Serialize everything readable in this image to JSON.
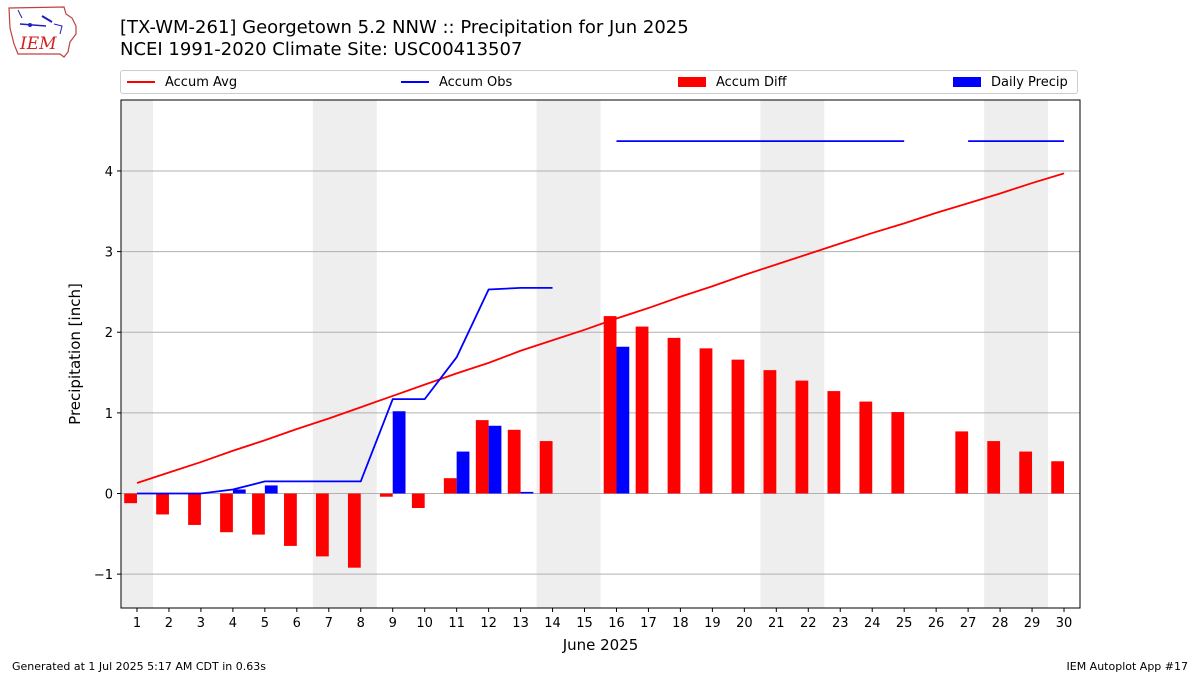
{
  "header": {
    "logo_text": "IEM",
    "title_line1": "[TX-WM-261] Georgetown 5.2 NNW :: Precipitation for Jun 2025",
    "title_line2": "NCEI 1991-2020 Climate Site: USC00413507"
  },
  "legend": {
    "accum_avg": "Accum Avg",
    "accum_obs": "Accum Obs",
    "accum_diff": "Accum Diff",
    "daily_precip": "Daily Precip"
  },
  "colors": {
    "accum_avg": "#ff0000",
    "accum_obs": "#0000ff",
    "accum_diff": "#ff0000",
    "daily_precip": "#0000ff",
    "weekend_shade": "#eeeeee",
    "grid": "#b0b0b0"
  },
  "footer": {
    "left": "Generated at 1 Jul 2025 5:17 AM CDT in 0.63s",
    "right": "IEM Autoplot App #17"
  },
  "chart_data": {
    "type": "bar",
    "xlabel": "June 2025",
    "ylabel": "Precipitation [inch]",
    "xlim": [
      0.5,
      30.5
    ],
    "ylim": [
      -1.42,
      4.88
    ],
    "yticks": [
      -1,
      0,
      1,
      2,
      3,
      4
    ],
    "days": [
      1,
      2,
      3,
      4,
      5,
      6,
      7,
      8,
      9,
      10,
      11,
      12,
      13,
      14,
      15,
      16,
      17,
      18,
      19,
      20,
      21,
      22,
      23,
      24,
      25,
      26,
      27,
      28,
      29,
      30
    ],
    "weekend_spans": [
      [
        0.5,
        1.5
      ],
      [
        6.5,
        8.5
      ],
      [
        13.5,
        15.5
      ],
      [
        20.5,
        22.5
      ],
      [
        27.5,
        29.5
      ]
    ],
    "grid": "horizontal",
    "legend_position": "top",
    "series": [
      {
        "name": "Accum Avg",
        "type": "line",
        "x": [
          1,
          2,
          3,
          4,
          5,
          6,
          7,
          8,
          9,
          10,
          11,
          12,
          13,
          14,
          15,
          16,
          17,
          18,
          19,
          20,
          21,
          22,
          23,
          24,
          25,
          26,
          27,
          28,
          29,
          30
        ],
        "values": [
          0.13,
          0.26,
          0.39,
          0.53,
          0.66,
          0.8,
          0.93,
          1.07,
          1.21,
          1.35,
          1.49,
          1.62,
          1.77,
          1.9,
          2.03,
          2.17,
          2.3,
          2.44,
          2.57,
          2.71,
          2.84,
          2.97,
          3.1,
          3.23,
          3.35,
          3.48,
          3.6,
          3.72,
          3.85,
          3.97
        ]
      },
      {
        "name": "Accum Obs",
        "type": "line",
        "segments": [
          {
            "x": [
              1,
              2,
              3,
              4,
              5,
              6,
              7,
              8,
              9,
              10,
              11,
              12,
              13,
              14
            ],
            "values": [
              0,
              0,
              0,
              0.05,
              0.15,
              0.15,
              0.15,
              0.15,
              1.17,
              1.17,
              1.69,
              2.53,
              2.55,
              2.55
            ]
          },
          {
            "x": [
              16,
              17,
              18,
              19,
              20,
              21,
              22,
              23,
              24,
              25
            ],
            "values": [
              4.37,
              4.37,
              4.37,
              4.37,
              4.37,
              4.37,
              4.37,
              4.37,
              4.37,
              4.37
            ]
          },
          {
            "x": [
              27,
              28,
              29,
              30
            ],
            "values": [
              4.37,
              4.37,
              4.37,
              4.37
            ]
          }
        ]
      },
      {
        "name": "Accum Diff",
        "type": "bar",
        "x": [
          1,
          2,
          3,
          4,
          5,
          6,
          7,
          8,
          9,
          10,
          11,
          12,
          13,
          14,
          16,
          17,
          18,
          19,
          20,
          21,
          22,
          23,
          24,
          25,
          27,
          28,
          29,
          30
        ],
        "values": [
          -0.12,
          -0.26,
          -0.39,
          -0.48,
          -0.51,
          -0.65,
          -0.78,
          -0.92,
          -0.04,
          -0.18,
          0.19,
          0.91,
          0.79,
          0.65,
          2.2,
          2.07,
          1.93,
          1.8,
          1.66,
          1.53,
          1.4,
          1.27,
          1.14,
          1.01,
          0.77,
          0.65,
          0.52,
          0.4
        ]
      },
      {
        "name": "Daily Precip",
        "type": "bar",
        "x": [
          4,
          5,
          9,
          11,
          12,
          13,
          16
        ],
        "values": [
          0.05,
          0.1,
          1.02,
          0.52,
          0.84,
          0.02,
          1.82
        ]
      }
    ]
  }
}
